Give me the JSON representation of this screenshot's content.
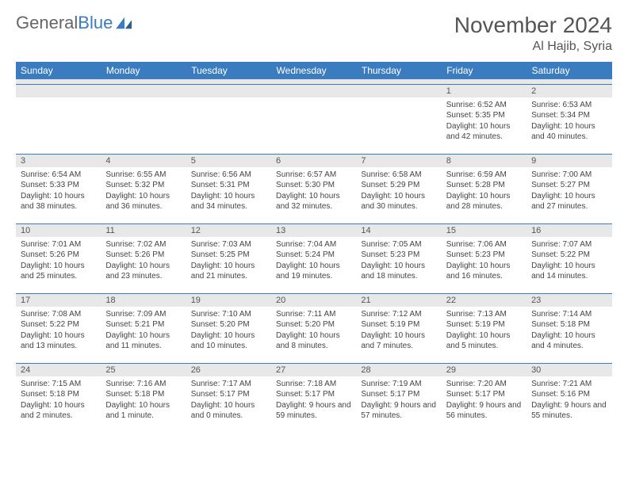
{
  "logo": {
    "word1": "General",
    "word2": "Blue"
  },
  "title": "November 2024",
  "location": "Al Hajib, Syria",
  "colors": {
    "header_bg": "#3b7bbf",
    "header_text": "#ffffff",
    "daynum_bg": "#e8e8e8",
    "cell_border": "#3b7bbf",
    "body_text": "#444444"
  },
  "weekdays": [
    "Sunday",
    "Monday",
    "Tuesday",
    "Wednesday",
    "Thursday",
    "Friday",
    "Saturday"
  ],
  "weeks": [
    [
      {
        "n": "",
        "sr": "",
        "ss": "",
        "dl": ""
      },
      {
        "n": "",
        "sr": "",
        "ss": "",
        "dl": ""
      },
      {
        "n": "",
        "sr": "",
        "ss": "",
        "dl": ""
      },
      {
        "n": "",
        "sr": "",
        "ss": "",
        "dl": ""
      },
      {
        "n": "",
        "sr": "",
        "ss": "",
        "dl": ""
      },
      {
        "n": "1",
        "sr": "Sunrise: 6:52 AM",
        "ss": "Sunset: 5:35 PM",
        "dl": "Daylight: 10 hours and 42 minutes."
      },
      {
        "n": "2",
        "sr": "Sunrise: 6:53 AM",
        "ss": "Sunset: 5:34 PM",
        "dl": "Daylight: 10 hours and 40 minutes."
      }
    ],
    [
      {
        "n": "3",
        "sr": "Sunrise: 6:54 AM",
        "ss": "Sunset: 5:33 PM",
        "dl": "Daylight: 10 hours and 38 minutes."
      },
      {
        "n": "4",
        "sr": "Sunrise: 6:55 AM",
        "ss": "Sunset: 5:32 PM",
        "dl": "Daylight: 10 hours and 36 minutes."
      },
      {
        "n": "5",
        "sr": "Sunrise: 6:56 AM",
        "ss": "Sunset: 5:31 PM",
        "dl": "Daylight: 10 hours and 34 minutes."
      },
      {
        "n": "6",
        "sr": "Sunrise: 6:57 AM",
        "ss": "Sunset: 5:30 PM",
        "dl": "Daylight: 10 hours and 32 minutes."
      },
      {
        "n": "7",
        "sr": "Sunrise: 6:58 AM",
        "ss": "Sunset: 5:29 PM",
        "dl": "Daylight: 10 hours and 30 minutes."
      },
      {
        "n": "8",
        "sr": "Sunrise: 6:59 AM",
        "ss": "Sunset: 5:28 PM",
        "dl": "Daylight: 10 hours and 28 minutes."
      },
      {
        "n": "9",
        "sr": "Sunrise: 7:00 AM",
        "ss": "Sunset: 5:27 PM",
        "dl": "Daylight: 10 hours and 27 minutes."
      }
    ],
    [
      {
        "n": "10",
        "sr": "Sunrise: 7:01 AM",
        "ss": "Sunset: 5:26 PM",
        "dl": "Daylight: 10 hours and 25 minutes."
      },
      {
        "n": "11",
        "sr": "Sunrise: 7:02 AM",
        "ss": "Sunset: 5:26 PM",
        "dl": "Daylight: 10 hours and 23 minutes."
      },
      {
        "n": "12",
        "sr": "Sunrise: 7:03 AM",
        "ss": "Sunset: 5:25 PM",
        "dl": "Daylight: 10 hours and 21 minutes."
      },
      {
        "n": "13",
        "sr": "Sunrise: 7:04 AM",
        "ss": "Sunset: 5:24 PM",
        "dl": "Daylight: 10 hours and 19 minutes."
      },
      {
        "n": "14",
        "sr": "Sunrise: 7:05 AM",
        "ss": "Sunset: 5:23 PM",
        "dl": "Daylight: 10 hours and 18 minutes."
      },
      {
        "n": "15",
        "sr": "Sunrise: 7:06 AM",
        "ss": "Sunset: 5:23 PM",
        "dl": "Daylight: 10 hours and 16 minutes."
      },
      {
        "n": "16",
        "sr": "Sunrise: 7:07 AM",
        "ss": "Sunset: 5:22 PM",
        "dl": "Daylight: 10 hours and 14 minutes."
      }
    ],
    [
      {
        "n": "17",
        "sr": "Sunrise: 7:08 AM",
        "ss": "Sunset: 5:22 PM",
        "dl": "Daylight: 10 hours and 13 minutes."
      },
      {
        "n": "18",
        "sr": "Sunrise: 7:09 AM",
        "ss": "Sunset: 5:21 PM",
        "dl": "Daylight: 10 hours and 11 minutes."
      },
      {
        "n": "19",
        "sr": "Sunrise: 7:10 AM",
        "ss": "Sunset: 5:20 PM",
        "dl": "Daylight: 10 hours and 10 minutes."
      },
      {
        "n": "20",
        "sr": "Sunrise: 7:11 AM",
        "ss": "Sunset: 5:20 PM",
        "dl": "Daylight: 10 hours and 8 minutes."
      },
      {
        "n": "21",
        "sr": "Sunrise: 7:12 AM",
        "ss": "Sunset: 5:19 PM",
        "dl": "Daylight: 10 hours and 7 minutes."
      },
      {
        "n": "22",
        "sr": "Sunrise: 7:13 AM",
        "ss": "Sunset: 5:19 PM",
        "dl": "Daylight: 10 hours and 5 minutes."
      },
      {
        "n": "23",
        "sr": "Sunrise: 7:14 AM",
        "ss": "Sunset: 5:18 PM",
        "dl": "Daylight: 10 hours and 4 minutes."
      }
    ],
    [
      {
        "n": "24",
        "sr": "Sunrise: 7:15 AM",
        "ss": "Sunset: 5:18 PM",
        "dl": "Daylight: 10 hours and 2 minutes."
      },
      {
        "n": "25",
        "sr": "Sunrise: 7:16 AM",
        "ss": "Sunset: 5:18 PM",
        "dl": "Daylight: 10 hours and 1 minute."
      },
      {
        "n": "26",
        "sr": "Sunrise: 7:17 AM",
        "ss": "Sunset: 5:17 PM",
        "dl": "Daylight: 10 hours and 0 minutes."
      },
      {
        "n": "27",
        "sr": "Sunrise: 7:18 AM",
        "ss": "Sunset: 5:17 PM",
        "dl": "Daylight: 9 hours and 59 minutes."
      },
      {
        "n": "28",
        "sr": "Sunrise: 7:19 AM",
        "ss": "Sunset: 5:17 PM",
        "dl": "Daylight: 9 hours and 57 minutes."
      },
      {
        "n": "29",
        "sr": "Sunrise: 7:20 AM",
        "ss": "Sunset: 5:17 PM",
        "dl": "Daylight: 9 hours and 56 minutes."
      },
      {
        "n": "30",
        "sr": "Sunrise: 7:21 AM",
        "ss": "Sunset: 5:16 PM",
        "dl": "Daylight: 9 hours and 55 minutes."
      }
    ]
  ]
}
